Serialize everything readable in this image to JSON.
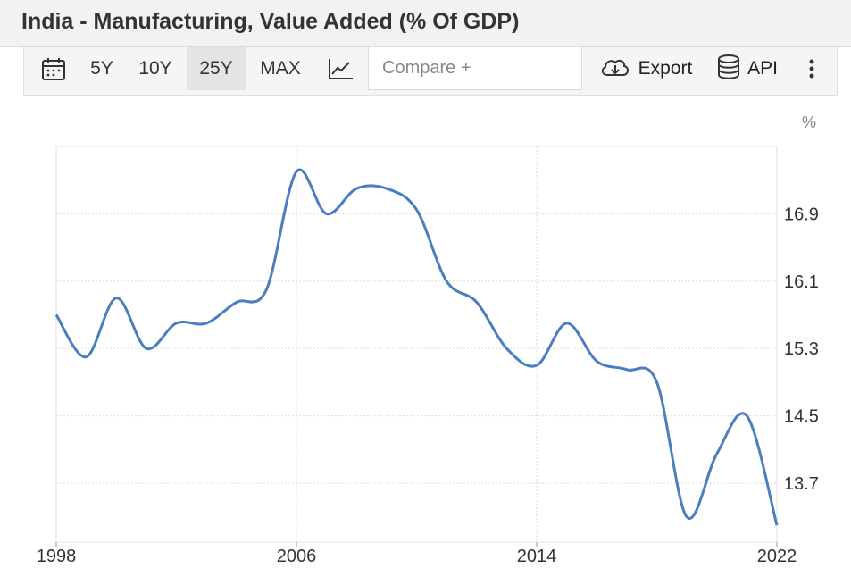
{
  "page": {
    "title": "India - Manufacturing, Value Added (% Of GDP)"
  },
  "toolbar": {
    "ranges": [
      "5Y",
      "10Y",
      "25Y",
      "MAX"
    ],
    "active_range": "25Y",
    "compare_placeholder": "Compare +",
    "export_label": "Export",
    "api_label": "API",
    "icons": [
      "calendar-icon",
      "line-chart-icon",
      "cloud-download-icon",
      "database-icon",
      "more-vertical-icon"
    ]
  },
  "colors": {
    "line": "#4a7ebf",
    "grid": "#dddddd",
    "title_bar_bg": "#f2f2f2",
    "toolbar_bg": "#f5f5f5"
  },
  "chart_data": {
    "type": "line",
    "title": "India - Manufacturing, Value Added (% Of GDP)",
    "xlabel": "",
    "ylabel": "%",
    "x_ticks": [
      "1998",
      "2006",
      "2014",
      "2022"
    ],
    "y_ticks": [
      "13.7",
      "14.5",
      "15.3",
      "16.1",
      "16.9"
    ],
    "xlim": [
      1998,
      2022
    ],
    "ylim": [
      13.0,
      17.7
    ],
    "grid": true,
    "series": [
      {
        "x": [
          1998,
          1999,
          2000,
          2001,
          2002,
          2003,
          2004,
          2005,
          2006,
          2007,
          2008,
          2009,
          2010,
          2011,
          2012,
          2013,
          2014,
          2015,
          2016,
          2017,
          2018,
          2019,
          2020,
          2021,
          2022
        ],
        "values": [
          15.7,
          15.2,
          15.9,
          15.3,
          15.6,
          15.6,
          15.85,
          16.0,
          17.4,
          16.9,
          17.2,
          17.2,
          16.95,
          16.1,
          15.85,
          15.3,
          15.1,
          15.6,
          15.15,
          15.05,
          14.9,
          13.3,
          14.05,
          14.5,
          13.2
        ]
      }
    ]
  }
}
